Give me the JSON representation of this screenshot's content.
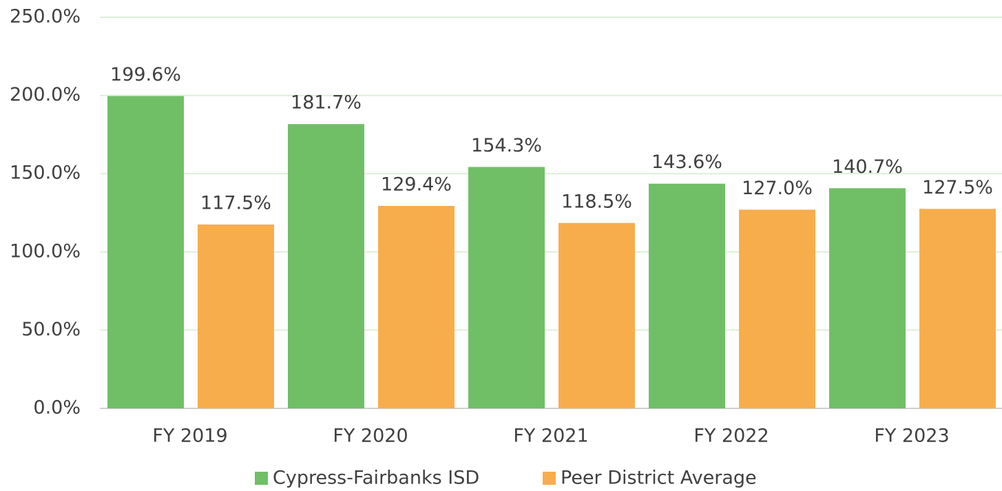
{
  "chart_data": {
    "type": "bar",
    "categories": [
      "FY 2019",
      "FY 2020",
      "FY 2021",
      "FY 2022",
      "FY 2023"
    ],
    "series": [
      {
        "name": "Cypress-Fairbanks ISD",
        "color": "#70bf67",
        "values": [
          199.6,
          181.7,
          154.3,
          143.6,
          140.7
        ],
        "value_labels": [
          "199.6%",
          "181.7%",
          "154.3%",
          "143.6%",
          "140.7%"
        ]
      },
      {
        "name": "Peer District Average",
        "color": "#f8ad4c",
        "values": [
          117.5,
          129.4,
          118.5,
          127.0,
          127.5
        ],
        "value_labels": [
          "117.5%",
          "129.4%",
          "118.5%",
          "127.0%",
          "127.5%"
        ]
      }
    ],
    "ylim": [
      0,
      250
    ],
    "yticks": [
      {
        "value": 0,
        "label": "0.0%"
      },
      {
        "value": 50,
        "label": "50.0%"
      },
      {
        "value": 100,
        "label": "100.0%"
      },
      {
        "value": 150,
        "label": "150.0%"
      },
      {
        "value": 200,
        "label": "200.0%"
      },
      {
        "value": 250,
        "label": "250.0%"
      }
    ],
    "grid": true,
    "legend": "bottom"
  }
}
